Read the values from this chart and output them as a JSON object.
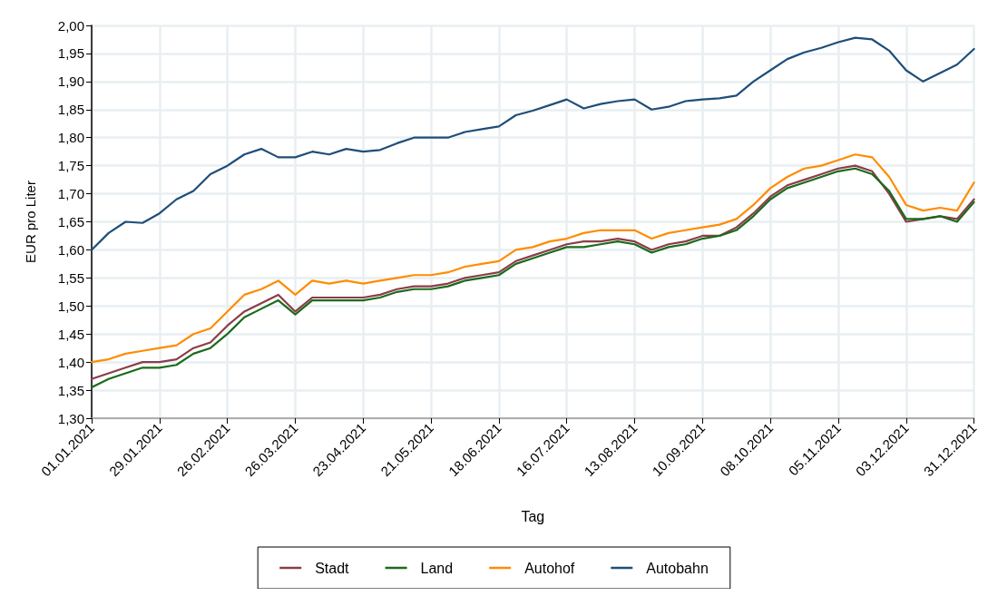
{
  "chart_data": {
    "type": "line",
    "xlabel": "Tag",
    "ylabel": "EUR pro Liter",
    "x": [
      "2021-01-01",
      "2021-01-08",
      "2021-01-15",
      "2021-01-22",
      "2021-01-29",
      "2021-02-05",
      "2021-02-12",
      "2021-02-19",
      "2021-02-26",
      "2021-03-05",
      "2021-03-12",
      "2021-03-19",
      "2021-03-26",
      "2021-04-02",
      "2021-04-09",
      "2021-04-16",
      "2021-04-23",
      "2021-04-30",
      "2021-05-07",
      "2021-05-14",
      "2021-05-21",
      "2021-05-28",
      "2021-06-04",
      "2021-06-11",
      "2021-06-18",
      "2021-06-25",
      "2021-07-02",
      "2021-07-09",
      "2021-07-16",
      "2021-07-23",
      "2021-07-30",
      "2021-08-06",
      "2021-08-13",
      "2021-08-20",
      "2021-08-27",
      "2021-09-03",
      "2021-09-10",
      "2021-09-17",
      "2021-09-24",
      "2021-10-01",
      "2021-10-08",
      "2021-10-15",
      "2021-10-22",
      "2021-10-29",
      "2021-11-05",
      "2021-11-12",
      "2021-11-19",
      "2021-11-26",
      "2021-12-03",
      "2021-12-10",
      "2021-12-17",
      "2021-12-24",
      "2021-12-31"
    ],
    "series": [
      {
        "name": "Stadt",
        "color": "#8b3d48",
        "values": [
          1.37,
          1.38,
          1.39,
          1.4,
          1.4,
          1.405,
          1.425,
          1.435,
          1.465,
          1.49,
          1.505,
          1.52,
          1.49,
          1.515,
          1.515,
          1.515,
          1.515,
          1.52,
          1.53,
          1.535,
          1.535,
          1.54,
          1.55,
          1.555,
          1.56,
          1.58,
          1.59,
          1.6,
          1.61,
          1.615,
          1.615,
          1.62,
          1.615,
          1.6,
          1.61,
          1.615,
          1.625,
          1.625,
          1.64,
          1.665,
          1.695,
          1.715,
          1.725,
          1.735,
          1.745,
          1.75,
          1.74,
          1.7,
          1.65,
          1.655,
          1.66,
          1.655,
          1.69
        ]
      },
      {
        "name": "Land",
        "color": "#1a6b1a",
        "values": [
          1.355,
          1.37,
          1.38,
          1.39,
          1.39,
          1.395,
          1.415,
          1.425,
          1.45,
          1.48,
          1.495,
          1.51,
          1.485,
          1.51,
          1.51,
          1.51,
          1.51,
          1.515,
          1.525,
          1.53,
          1.53,
          1.535,
          1.545,
          1.55,
          1.555,
          1.575,
          1.585,
          1.595,
          1.605,
          1.605,
          1.61,
          1.615,
          1.61,
          1.595,
          1.605,
          1.61,
          1.62,
          1.625,
          1.635,
          1.66,
          1.69,
          1.71,
          1.72,
          1.73,
          1.74,
          1.745,
          1.735,
          1.705,
          1.655,
          1.655,
          1.66,
          1.65,
          1.685
        ]
      },
      {
        "name": "Autohof",
        "color": "#ff8c00",
        "values": [
          1.4,
          1.405,
          1.415,
          1.42,
          1.425,
          1.43,
          1.45,
          1.46,
          1.49,
          1.52,
          1.53,
          1.545,
          1.52,
          1.545,
          1.54,
          1.545,
          1.54,
          1.545,
          1.55,
          1.555,
          1.555,
          1.56,
          1.57,
          1.575,
          1.58,
          1.6,
          1.605,
          1.615,
          1.62,
          1.63,
          1.635,
          1.635,
          1.635,
          1.62,
          1.63,
          1.635,
          1.64,
          1.645,
          1.655,
          1.68,
          1.71,
          1.73,
          1.745,
          1.75,
          1.76,
          1.77,
          1.765,
          1.73,
          1.68,
          1.67,
          1.675,
          1.67,
          1.72
        ]
      },
      {
        "name": "Autobahn",
        "color": "#1f4e79",
        "values": [
          1.6,
          1.63,
          1.65,
          1.648,
          1.665,
          1.69,
          1.705,
          1.735,
          1.75,
          1.77,
          1.78,
          1.765,
          1.765,
          1.775,
          1.77,
          1.78,
          1.775,
          1.778,
          1.79,
          1.8,
          1.8,
          1.8,
          1.81,
          1.815,
          1.82,
          1.84,
          1.848,
          1.858,
          1.868,
          1.852,
          1.86,
          1.865,
          1.868,
          1.85,
          1.855,
          1.865,
          1.868,
          1.87,
          1.875,
          1.9,
          1.92,
          1.94,
          1.952,
          1.96,
          1.97,
          1.978,
          1.975,
          1.955,
          1.92,
          1.9,
          1.915,
          1.93,
          1.958
        ]
      }
    ],
    "xlim": [
      "2021-01-01",
      "2021-12-31"
    ],
    "xticks": [
      {
        "value": "2021-01-01",
        "label": "01.01.2021"
      },
      {
        "value": "2021-01-29",
        "label": "29.01.2021"
      },
      {
        "value": "2021-02-26",
        "label": "26.02.2021"
      },
      {
        "value": "2021-03-26",
        "label": "26.03.2021"
      },
      {
        "value": "2021-04-23",
        "label": "23.04.2021"
      },
      {
        "value": "2021-05-21",
        "label": "21.05.2021"
      },
      {
        "value": "2021-06-18",
        "label": "18.06.2021"
      },
      {
        "value": "2021-07-16",
        "label": "16.07.2021"
      },
      {
        "value": "2021-08-13",
        "label": "13.08.2021"
      },
      {
        "value": "2021-09-10",
        "label": "10.09.2021"
      },
      {
        "value": "2021-10-08",
        "label": "08.10.2021"
      },
      {
        "value": "2021-11-05",
        "label": "05.11.2021"
      },
      {
        "value": "2021-12-03",
        "label": "03.12.2021"
      },
      {
        "value": "2021-12-31",
        "label": "31.12.2021"
      }
    ],
    "ylim": [
      1.3,
      2.0
    ],
    "yticks": [
      {
        "value": 1.3,
        "label": "1,30"
      },
      {
        "value": 1.35,
        "label": "1,35"
      },
      {
        "value": 1.4,
        "label": "1,40"
      },
      {
        "value": 1.45,
        "label": "1,45"
      },
      {
        "value": 1.5,
        "label": "1,50"
      },
      {
        "value": 1.55,
        "label": "1,55"
      },
      {
        "value": 1.6,
        "label": "1,60"
      },
      {
        "value": 1.65,
        "label": "1,65"
      },
      {
        "value": 1.7,
        "label": "1,70"
      },
      {
        "value": 1.75,
        "label": "1,75"
      },
      {
        "value": 1.8,
        "label": "1,80"
      },
      {
        "value": 1.85,
        "label": "1,85"
      },
      {
        "value": 1.9,
        "label": "1,90"
      },
      {
        "value": 1.95,
        "label": "1,95"
      },
      {
        "value": 2.0,
        "label": "2,00"
      }
    ],
    "grid": true,
    "legend": "bottom",
    "marker": "none",
    "line_style": "solid"
  }
}
